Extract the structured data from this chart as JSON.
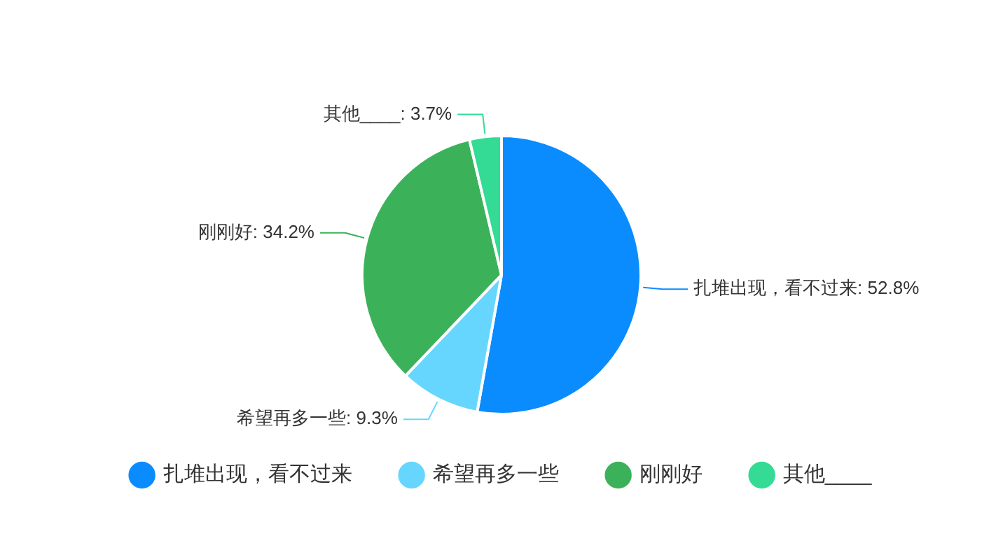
{
  "chart_data": {
    "type": "pie",
    "categories": [
      "扎堆出现，看不过来",
      "希望再多一些",
      "刚刚好",
      "其他____"
    ],
    "values": [
      52.8,
      9.3,
      34.2,
      3.7
    ],
    "value_labels": [
      "扎堆出现，看不过来: 52.8%",
      "希望再多一些: 9.3%",
      "刚刚好: 34.2%",
      "其他____: 3.7%"
    ],
    "colors": [
      "#0a8cff",
      "#66d6ff",
      "#3bb25a",
      "#33db94"
    ],
    "legend": "bottom"
  }
}
